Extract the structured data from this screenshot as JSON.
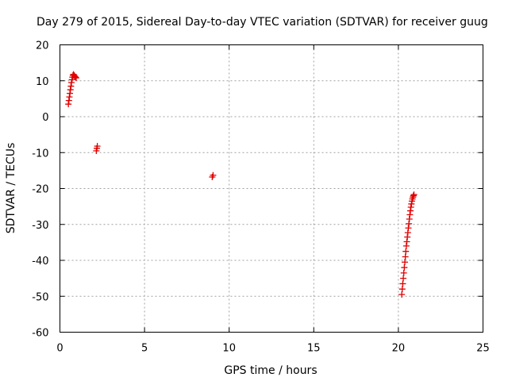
{
  "chart_data": {
    "type": "scatter",
    "title": "Day 279 of 2015, Sidereal Day-to-day VTEC variation (SDTVAR) for receiver guug",
    "xlabel": "GPS time / hours",
    "ylabel": "SDTVAR / TECUs",
    "xlim": [
      0,
      25
    ],
    "ylim": [
      -60,
      20
    ],
    "xticks": [
      0,
      5,
      10,
      15,
      20,
      25
    ],
    "yticks": [
      20,
      10,
      0,
      -10,
      -20,
      -30,
      -40,
      -50,
      -60
    ],
    "grid": true,
    "marker": "plus",
    "series_color": "#e00000",
    "series": [
      {
        "x": [
          0.5,
          0.53,
          0.56,
          0.59,
          0.62,
          0.65,
          0.68,
          0.71,
          0.74,
          0.77,
          0.8,
          0.84,
          0.88,
          0.92,
          0.96,
          2.15,
          2.18,
          2.21,
          9.0,
          9.05,
          20.2,
          20.23,
          20.26,
          20.29,
          20.32,
          20.35,
          20.38,
          20.41,
          20.44,
          20.47,
          20.5,
          20.53,
          20.56,
          20.59,
          20.62,
          20.65,
          20.68,
          20.71,
          20.74,
          20.77,
          20.8,
          20.83,
          20.86,
          20.89,
          20.92
        ],
        "y": [
          3.5,
          4.5,
          5.5,
          6.5,
          7.5,
          8.5,
          9.5,
          10.3,
          11.0,
          11.5,
          11.8,
          11.5,
          11.2,
          11.0,
          10.8,
          -9.5,
          -8.8,
          -8.2,
          -16.8,
          -16.3,
          -49.5,
          -48.0,
          -46.5,
          -45.0,
          -43.5,
          -42.0,
          -40.5,
          -39.0,
          -37.5,
          -36.0,
          -34.8,
          -33.5,
          -32.3,
          -31.0,
          -29.8,
          -28.5,
          -27.3,
          -26.2,
          -25.2,
          -24.3,
          -23.5,
          -22.9,
          -22.4,
          -22.0,
          -21.7
        ]
      }
    ]
  }
}
